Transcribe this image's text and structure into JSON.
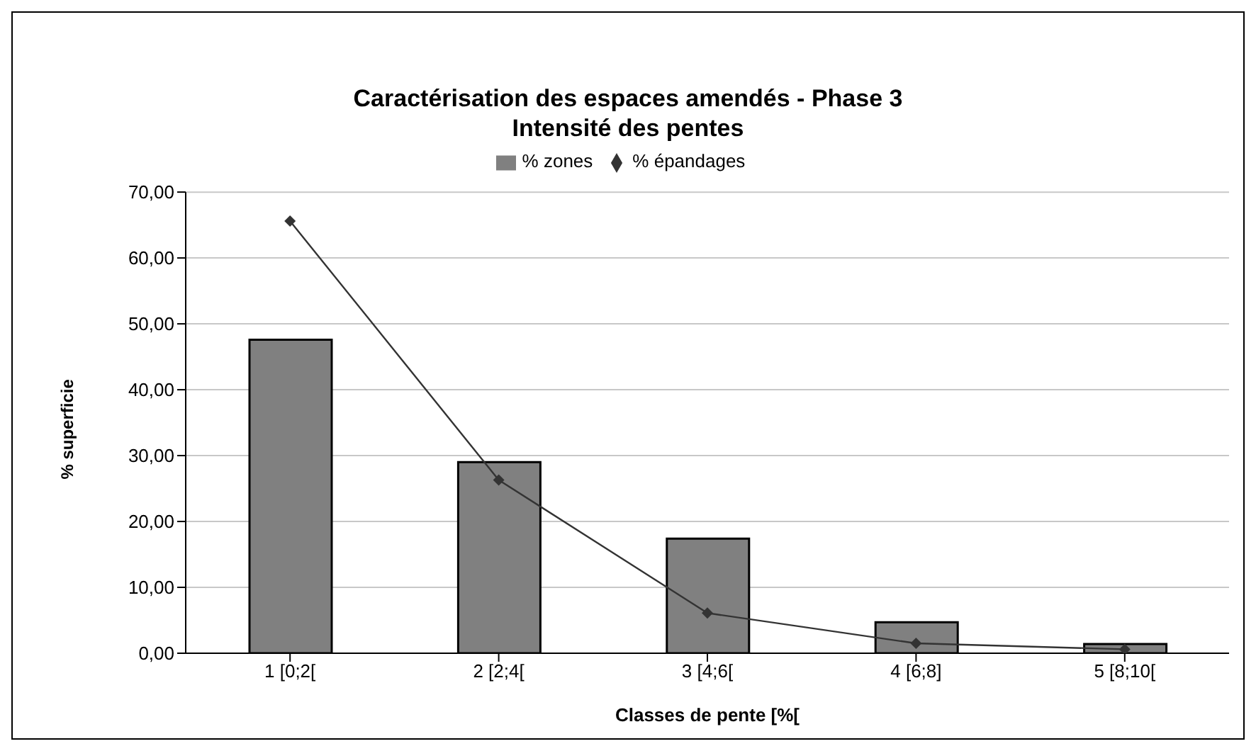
{
  "chart_data": {
    "type": "bar",
    "title": "Caractérisation des espaces amendés - Phase 3",
    "subtitle": "Intensité des pentes",
    "xlabel": "Classes de pente [%[",
    "ylabel": "% superficie",
    "categories": [
      "1 [0;2[",
      "2 [2;4[",
      "3 [4;6[",
      "4 [6;8]",
      "5 [8;10["
    ],
    "series": [
      {
        "name": "% zones",
        "color": "#808080",
        "values": [
          47.6,
          29.0,
          17.4,
          4.7,
          1.4
        ]
      },
      {
        "name": "% épandages",
        "type": "line",
        "color": "#333333",
        "marker": "diamond",
        "values": [
          65.6,
          26.3,
          6.1,
          1.5,
          0.6
        ]
      }
    ],
    "ylim": [
      0,
      70
    ],
    "yticks": [
      {
        "value": 0,
        "label": "0,00"
      },
      {
        "value": 10,
        "label": "10,00"
      },
      {
        "value": 20,
        "label": "20,00"
      },
      {
        "value": 30,
        "label": "30,00"
      },
      {
        "value": 40,
        "label": "40,00"
      },
      {
        "value": 50,
        "label": "50,00"
      },
      {
        "value": 60,
        "label": "60,00"
      },
      {
        "value": 70,
        "label": "70,00"
      }
    ],
    "grid": "y",
    "legend": "top"
  }
}
